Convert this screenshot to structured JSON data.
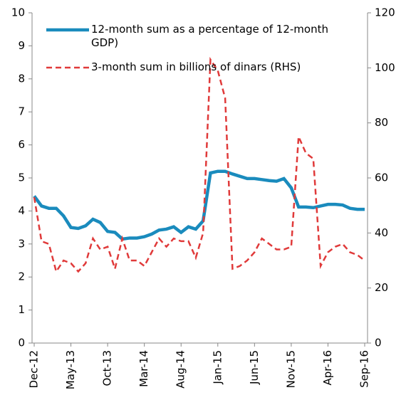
{
  "chart_data": {
    "type": "line",
    "categories": [
      "Dec-12",
      null,
      null,
      null,
      null,
      "May-13",
      null,
      null,
      null,
      null,
      "Oct-13",
      null,
      null,
      null,
      null,
      "Mar-14",
      null,
      null,
      null,
      null,
      "Aug-14",
      null,
      null,
      null,
      null,
      "Jan-15",
      null,
      null,
      null,
      null,
      "Jun-15",
      null,
      null,
      null,
      null,
      "Nov-15",
      null,
      null,
      null,
      null,
      "Apr-16",
      null,
      null,
      null,
      null,
      "Sep-16"
    ],
    "series": [
      {
        "name": "12-month sum as a percentage of 12-month GDP)",
        "color": "#1a8bbd",
        "style": "solid",
        "values": [
          4.45,
          4.15,
          4.08,
          4.08,
          3.85,
          3.5,
          3.47,
          3.55,
          3.75,
          3.65,
          3.38,
          3.35,
          3.15,
          3.18,
          3.18,
          3.22,
          3.3,
          3.42,
          3.45,
          3.52,
          3.35,
          3.52,
          3.45,
          3.7,
          5.15,
          5.2,
          5.2,
          5.12,
          5.05,
          4.98,
          4.98,
          4.95,
          4.92,
          4.9,
          4.98,
          4.7,
          4.12,
          4.12,
          4.1,
          4.15,
          4.2,
          4.2,
          4.18,
          4.08,
          4.05,
          4.05
        ]
      },
      {
        "name": "3-month sum in billions of dinars (RHS)",
        "color": "#e03a3a",
        "style": "dashed",
        "axis": "y2",
        "values": [
          53,
          37,
          36,
          26,
          30,
          29,
          26,
          29,
          38,
          34,
          35,
          27,
          38,
          30,
          30,
          28,
          33,
          38,
          35,
          38,
          37,
          37,
          31,
          40,
          103,
          99,
          89,
          27,
          28,
          30,
          33,
          38,
          36,
          34,
          34,
          35,
          75,
          69,
          67,
          28,
          33,
          35,
          36,
          33,
          32,
          30
        ]
      }
    ],
    "ylim": [
      0,
      10
    ],
    "yticks": [
      0,
      1,
      2,
      3,
      4,
      5,
      6,
      7,
      8,
      9,
      10
    ],
    "y2lim": [
      0,
      120
    ],
    "y2ticks": [
      0,
      20,
      40,
      60,
      80,
      100,
      120
    ],
    "legend": "upper left"
  }
}
